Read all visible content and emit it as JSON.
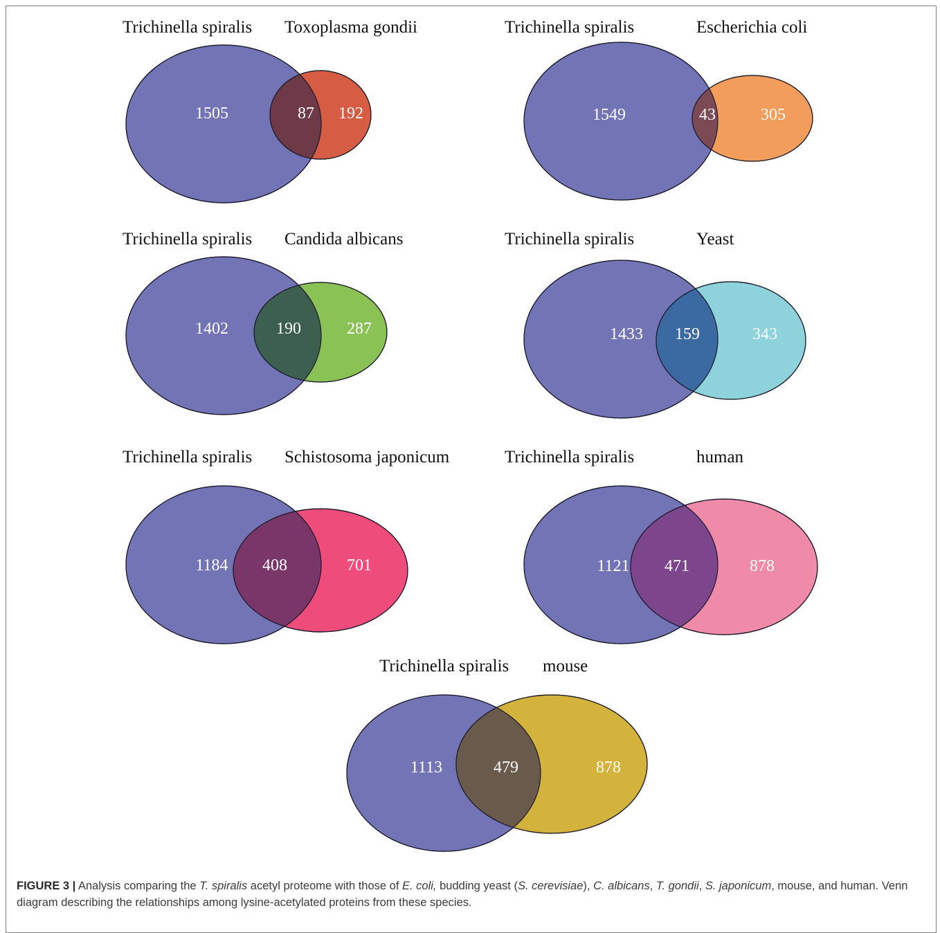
{
  "diagrams": [
    {
      "species_a": "Trichinella spiralis",
      "species_b": "Toxoplasma gondii",
      "only_a": "1505",
      "overlap": "87",
      "only_b": "192",
      "color_b": "#d65c43",
      "color_overlap": "#6e3a48"
    },
    {
      "species_a": "Trichinella spiralis",
      "species_b": "Escherichia coli",
      "only_a": "1549",
      "overlap": "43",
      "only_b": "305",
      "color_b": "#f29d5b",
      "color_overlap": "#7b4a55"
    },
    {
      "species_a": "Trichinella spiralis",
      "species_b": "Candida albicans",
      "only_a": "1402",
      "overlap": "190",
      "only_b": "287",
      "color_b": "#8bc255",
      "color_overlap": "#3c5f4f"
    },
    {
      "species_a": "Trichinella spiralis",
      "species_b": "Yeast",
      "only_a": "1433",
      "overlap": "159",
      "only_b": "343",
      "color_b": "#8ed3dc",
      "color_overlap": "#3b6aa2"
    },
    {
      "species_a": "Trichinella spiralis",
      "species_b": "Schistosoma japonicum",
      "only_a": "1184",
      "overlap": "408",
      "only_b": "701",
      "color_b": "#ee4c7b",
      "color_overlap": "#7b3669"
    },
    {
      "species_a": "Trichinella spiralis",
      "species_b": "human",
      "only_a": "1121",
      "overlap": "471",
      "only_b": "878",
      "color_b": "#ef8aa8",
      "color_overlap": "#7d468c"
    },
    {
      "species_a": "Trichinella spiralis",
      "species_b": "mouse",
      "only_a": "1113",
      "overlap": "479",
      "only_b": "878",
      "color_b": "#d4b33c",
      "color_overlap": "#6a5a4b"
    }
  ],
  "color_a": "#7274b5",
  "caption": {
    "label": "FIGURE 3 |",
    "t1": " Analysis comparing the ",
    "i1": "T. spiralis",
    "t2": " acetyl proteome with those of ",
    "i2": "E. coli,",
    "t3": " budding yeast (",
    "i3": "S. cerevisiae",
    "t4": "), ",
    "i4": "C. albicans",
    "t5": ", ",
    "i5": "T. gondii",
    "t6": ", ",
    "i6": "S. japonicum",
    "t7": ", mouse, and human. Venn diagram describing the relationships among lysine-acetylated proteins from these species."
  }
}
